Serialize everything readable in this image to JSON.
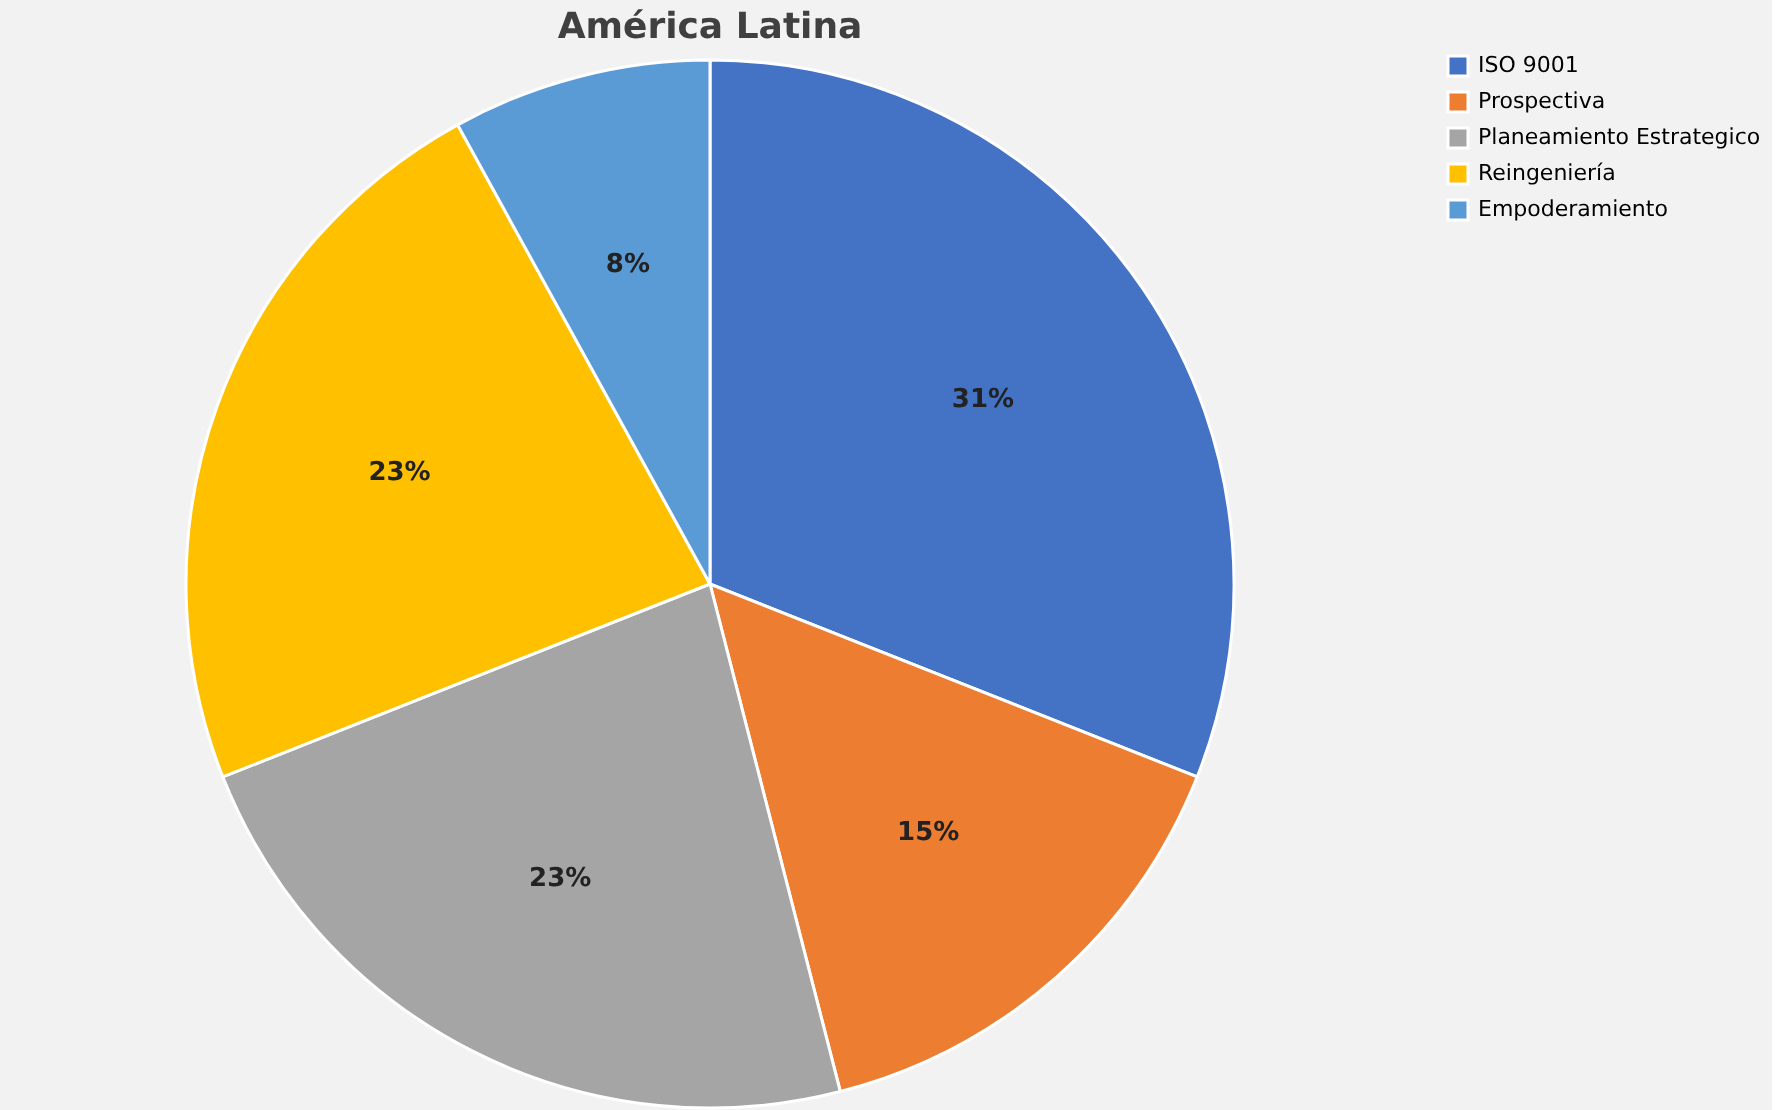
{
  "chart_data": {
    "type": "pie",
    "title": "América Latina",
    "categories": [
      "ISO 9001",
      "Prospectiva",
      "Planeamiento Estrategico",
      "Reingeniería",
      "Empoderamiento"
    ],
    "values": [
      31,
      15,
      23,
      23,
      8
    ],
    "colors": [
      "#4472c4",
      "#ed7d31",
      "#a5a5a5",
      "#ffc000",
      "#5b9bd5"
    ],
    "value_labels": [
      "31%",
      "15%",
      "23%",
      "23%",
      "8%"
    ],
    "legend": "right"
  }
}
